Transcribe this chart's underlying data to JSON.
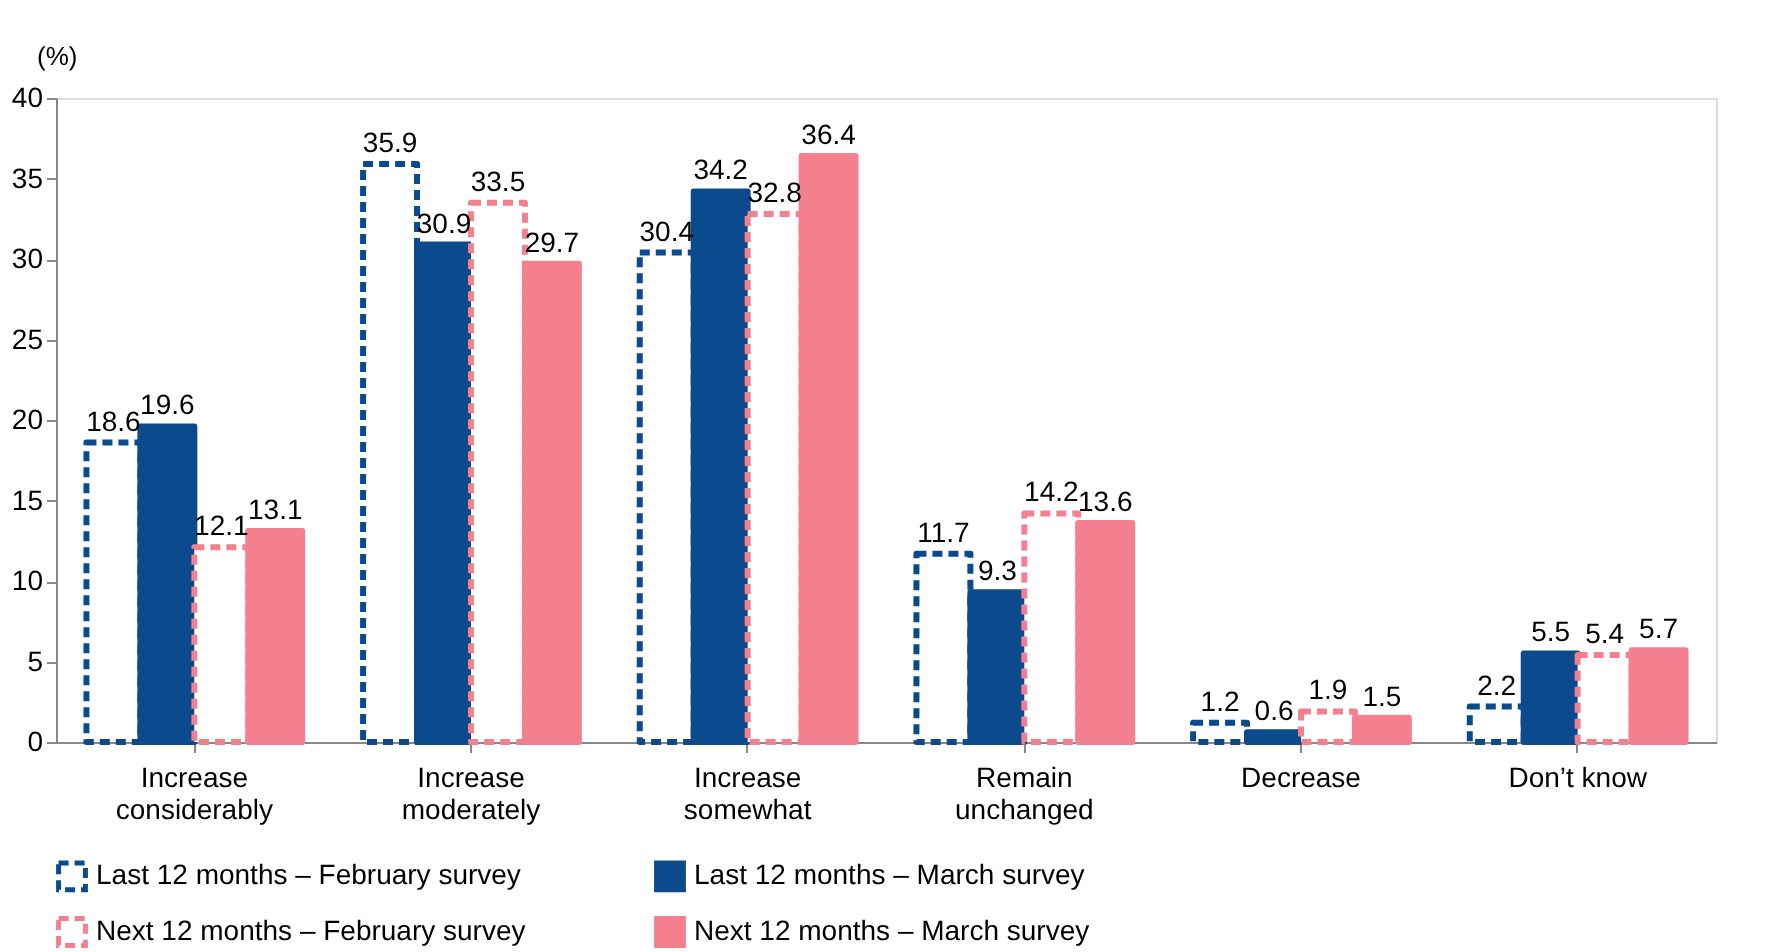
{
  "chart_data": {
    "type": "bar",
    "ylabel": "(%)",
    "categories": [
      "Increase considerably",
      "Increase moderately",
      "Increase somewhat",
      "Remain unchanged",
      "Decrease",
      "Don’t know"
    ],
    "series": [
      {
        "name": "Last 12 months – February survey",
        "color": "#0b4a8c",
        "line_style": "dashed",
        "values": [
          18.6,
          35.9,
          30.4,
          11.7,
          1.2,
          2.2
        ]
      },
      {
        "name": "Last 12 months – March survey",
        "color": "#0b4a8c",
        "line_style": "solid",
        "values": [
          19.6,
          30.9,
          34.2,
          9.3,
          0.6,
          5.5
        ]
      },
      {
        "name": "Next 12 months – February survey",
        "color": "#f4808f",
        "line_style": "dashed",
        "values": [
          12.1,
          33.5,
          32.8,
          14.2,
          1.9,
          5.4
        ]
      },
      {
        "name": "Next 12 months – March survey",
        "color": "#f4808f",
        "line_style": "solid",
        "values": [
          13.1,
          29.7,
          36.4,
          13.6,
          1.5,
          5.7
        ]
      }
    ],
    "ylim": [
      0,
      40
    ],
    "yticks": [
      0,
      5,
      10,
      15,
      20,
      25,
      30,
      35,
      40
    ],
    "grid": false,
    "legend": "bottom",
    "data_labels": true
  }
}
